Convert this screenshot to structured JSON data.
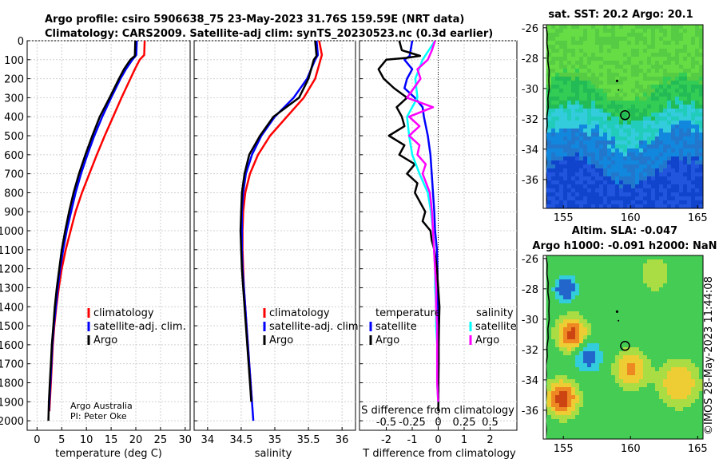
{
  "header": {
    "title_line1": "Argo profile: csiro 5906638_75 23-May-2023 31.76S 159.59E (NRT data)",
    "title_line2": "Climatology: CARS2009. Satellite-adj clim: synTS_20230523.nc (0.3d earlier)"
  },
  "colors": {
    "climatology": "#ff0000",
    "satellite": "#0000ff",
    "argo": "#000000",
    "sal_satellite": "#00ffff",
    "sal_argo": "#ff00ff",
    "grid": "#d0d0d0"
  },
  "credit": {
    "line1": "Argo Australia",
    "line2": "PI: Peter Oke"
  },
  "stamp": "©IMOS 28-May-2023 11:44:08",
  "chart_data": [
    {
      "id": "temperature",
      "type": "line",
      "xlabel": "temperature (deg C)",
      "ylabel": "",
      "xlim": [
        -2,
        31
      ],
      "ylim": [
        0,
        2050
      ],
      "xticks": [
        0,
        5,
        10,
        15,
        20,
        25,
        30
      ],
      "yticks": [
        0,
        100,
        200,
        300,
        400,
        500,
        600,
        700,
        800,
        900,
        1000,
        1100,
        1200,
        1300,
        1400,
        1500,
        1600,
        1700,
        1800,
        1900,
        2000
      ],
      "legend": {
        "placement": "lower-right",
        "entries": [
          "climatology",
          "satellite-adj. clim.",
          "Argo"
        ]
      },
      "series": [
        {
          "name": "climatology",
          "color": "#ff0000",
          "depth": [
            0,
            75,
            100,
            150,
            200,
            300,
            400,
            500,
            600,
            700,
            800,
            900,
            1000,
            1100,
            1200,
            1300,
            1400,
            1500,
            1600,
            1700,
            1800,
            1900,
            1950
          ],
          "values": [
            21.8,
            21.7,
            20.8,
            19.8,
            18.9,
            17.1,
            15.4,
            13.7,
            12.1,
            10.6,
            9.1,
            7.8,
            6.8,
            5.8,
            5.0,
            4.4,
            3.9,
            3.5,
            3.2,
            3.0,
            2.8,
            2.6,
            2.5
          ]
        },
        {
          "name": "satellite-adj. clim.",
          "color": "#0000ff",
          "depth": [
            0,
            75,
            100,
            150,
            200,
            300,
            400,
            500,
            600,
            700,
            800,
            900,
            1000,
            1100,
            1200,
            1300,
            1400,
            1500,
            1600,
            1700,
            1800,
            1900,
            1950
          ],
          "values": [
            20.2,
            20.1,
            19.3,
            18.0,
            16.9,
            15.0,
            13.2,
            11.6,
            10.2,
            8.9,
            7.8,
            6.9,
            6.0,
            5.3,
            4.7,
            4.2,
            3.8,
            3.4,
            3.1,
            2.9,
            2.7,
            2.5,
            2.4
          ]
        },
        {
          "name": "Argo",
          "color": "#000000",
          "depth": [
            0,
            80,
            100,
            150,
            200,
            300,
            400,
            500,
            600,
            700,
            800,
            900,
            1000,
            1100,
            1200,
            1300,
            1400,
            1500,
            1600,
            1700,
            1800,
            1900,
            2000
          ],
          "values": [
            19.9,
            19.8,
            18.9,
            17.6,
            16.6,
            14.7,
            12.7,
            11.2,
            9.8,
            8.5,
            7.4,
            6.5,
            5.7,
            5.0,
            4.5,
            4.0,
            3.6,
            3.3,
            3.0,
            2.8,
            2.6,
            2.4,
            2.3
          ]
        }
      ]
    },
    {
      "id": "salinity",
      "type": "line",
      "xlabel": "salinity",
      "ylabel": "",
      "xlim": [
        33.8,
        36.2
      ],
      "ylim": [
        0,
        2050
      ],
      "xticks": [
        34,
        34.5,
        35,
        35.5,
        36
      ],
      "legend": {
        "placement": "lower-right",
        "entries": [
          "climatology",
          "satellite-adj. clim.",
          "Argo"
        ]
      },
      "series": [
        {
          "name": "climatology",
          "color": "#ff0000",
          "depth": [
            0,
            75,
            100,
            200,
            300,
            400,
            500,
            600,
            700,
            800,
            900,
            1000,
            1100,
            1200,
            1300,
            1400,
            1500,
            1600,
            1700,
            1800,
            1900
          ],
          "values": [
            35.66,
            35.7,
            35.68,
            35.6,
            35.43,
            35.18,
            34.93,
            34.75,
            34.63,
            34.56,
            34.53,
            34.52,
            34.52,
            34.53,
            34.54,
            34.56,
            34.58,
            34.6,
            34.62,
            34.64,
            34.66
          ]
        },
        {
          "name": "satellite-adj. clim.",
          "color": "#0000ff",
          "depth": [
            0,
            75,
            100,
            200,
            300,
            400,
            500,
            600,
            700,
            800,
            900,
            1000,
            1100,
            1200,
            1300,
            1400,
            1500,
            1600,
            1700,
            1800,
            1900,
            2000
          ],
          "values": [
            35.62,
            35.64,
            35.6,
            35.48,
            35.28,
            35.0,
            34.8,
            34.66,
            34.57,
            34.53,
            34.51,
            34.51,
            34.51,
            34.52,
            34.54,
            34.56,
            34.58,
            34.6,
            34.62,
            34.64,
            34.66,
            34.68
          ]
        },
        {
          "name": "Argo",
          "color": "#000000",
          "depth": [
            0,
            80,
            100,
            200,
            300,
            400,
            500,
            600,
            700,
            800,
            900,
            1000,
            1100,
            1200,
            1300,
            1400,
            1500,
            1600,
            1700,
            1800,
            1900
          ],
          "values": [
            35.6,
            35.62,
            35.58,
            35.5,
            35.36,
            34.98,
            34.78,
            34.62,
            34.55,
            34.51,
            34.5,
            34.49,
            34.5,
            34.51,
            34.53,
            34.55,
            34.57,
            34.59,
            34.61,
            34.63,
            34.65
          ]
        }
      ]
    },
    {
      "id": "difference",
      "type": "line",
      "xlabel": "T difference from climatology",
      "xlabel_top": "S difference from climatology",
      "xlim": [
        -3,
        3
      ],
      "ylim": [
        0,
        2050
      ],
      "xticks_T": [
        -2,
        -1,
        0,
        1,
        2
      ],
      "xticks_S": [
        -0.5,
        -0.25,
        0,
        0.25,
        0.5
      ],
      "legend_temperature": {
        "title": "temperature",
        "entries": [
          "satellite",
          "Argo"
        ]
      },
      "legend_salinity": {
        "title": "salinity",
        "entries": [
          "satellite",
          "Argo"
        ]
      },
      "series": [
        {
          "name": "temperature satellite",
          "color": "#0000ff",
          "depth": [
            0,
            80,
            100,
            150,
            200,
            250,
            300,
            350,
            400,
            500,
            600,
            700,
            800,
            900,
            1000,
            1100,
            1200,
            1300,
            1400,
            1500
          ],
          "values": [
            -1.0,
            -1.1,
            -1.3,
            -1.0,
            -1.2,
            -1.3,
            -0.9,
            -0.6,
            -0.55,
            -0.4,
            -0.3,
            -0.25,
            -0.2,
            -0.15,
            -0.12,
            -0.05,
            -0.03,
            -0.02,
            -0.01,
            0
          ]
        },
        {
          "name": "temperature Argo",
          "color": "#000000",
          "depth": [
            0,
            50,
            80,
            90,
            100,
            150,
            200,
            250,
            300,
            350,
            400,
            450,
            500,
            550,
            600,
            650,
            700,
            750,
            800,
            850,
            900,
            950,
            1000,
            1050,
            1100,
            1150,
            1200,
            1300,
            1400,
            1500,
            1600,
            1700,
            1800,
            1900,
            1950
          ],
          "values": [
            -1.5,
            -1.4,
            -0.7,
            -1.2,
            -2.0,
            -2.3,
            -2.1,
            -1.7,
            -1.2,
            -1.6,
            -1.4,
            -1.3,
            -1.9,
            -1.3,
            -1.5,
            -0.9,
            -1.2,
            -0.8,
            -0.9,
            -0.7,
            -0.5,
            -0.6,
            -0.3,
            -0.25,
            -0.15,
            -0.1,
            -0.05,
            0.0,
            0.05,
            0.03,
            0.02,
            0.02,
            0.01,
            0.01,
            0.0
          ]
        },
        {
          "name": "salinity satellite",
          "color": "#00ffff",
          "depth": [
            0,
            100,
            200,
            300,
            400,
            500,
            600,
            700,
            800,
            900,
            1000,
            1100,
            1200,
            1300,
            1400,
            1500,
            1600,
            1700,
            1800,
            1900
          ],
          "values": [
            -0.03,
            -0.15,
            -0.22,
            -0.2,
            -0.3,
            -0.28,
            -0.25,
            -0.18,
            -0.1,
            -0.07,
            -0.05,
            -0.04,
            -0.03,
            -0.03,
            -0.02,
            -0.02,
            -0.01,
            -0.01,
            -0.01,
            0.0
          ]
        },
        {
          "name": "salinity Argo",
          "color": "#ff00ff",
          "depth": [
            0,
            50,
            100,
            150,
            200,
            300,
            350,
            400,
            450,
            500,
            550,
            600,
            650,
            700,
            800,
            900,
            1000,
            1100,
            1200,
            1300,
            1400,
            1500,
            1600,
            1700,
            1800,
            1900
          ],
          "values": [
            -0.03,
            -0.06,
            -0.1,
            -0.2,
            -0.17,
            -0.3,
            -0.05,
            -0.28,
            -0.18,
            -0.28,
            -0.18,
            -0.2,
            -0.12,
            -0.15,
            -0.08,
            -0.06,
            -0.05,
            -0.04,
            -0.03,
            -0.02,
            -0.02,
            -0.01,
            -0.01,
            -0.01,
            -0.01,
            0.0
          ]
        }
      ]
    },
    {
      "id": "sst_map",
      "type": "heatmap",
      "title": "sat. SST: 20.2 Argo: 20.1",
      "xlim": [
        153.5,
        165.4
      ],
      "ylim": [
        -37.9,
        -25.8
      ],
      "xticks": [
        155,
        160,
        165
      ],
      "yticks": [
        -26,
        -28,
        -30,
        -32,
        -34,
        -36
      ],
      "float_position": {
        "lon": 159.59,
        "lat": -31.76
      }
    },
    {
      "id": "sla_map",
      "type": "heatmap",
      "title_line1": "Altim. SLA: -0.047",
      "title_line2": "Argo h1000: -0.091 h2000: NaN",
      "xlim": [
        153.5,
        165.4
      ],
      "ylim": [
        -37.9,
        -25.8
      ],
      "xticks": [
        155,
        160,
        165
      ],
      "yticks": [
        -26,
        -28,
        -30,
        -32,
        -34,
        -36
      ],
      "float_position": {
        "lon": 159.59,
        "lat": -31.76
      }
    }
  ]
}
